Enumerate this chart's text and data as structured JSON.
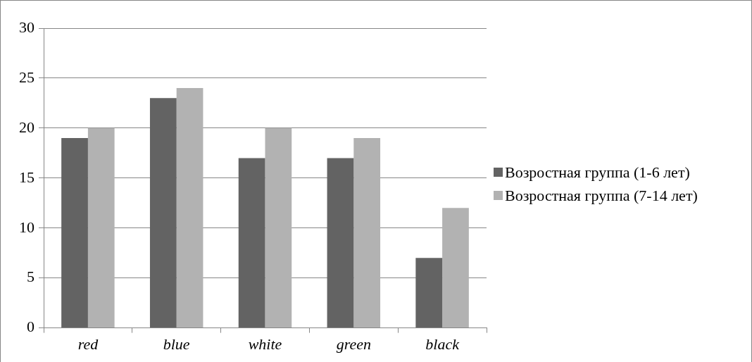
{
  "chart_data": {
    "type": "bar",
    "categories": [
      "red",
      "blue",
      "white",
      "green",
      "black"
    ],
    "series": [
      {
        "name": "Возростная группа (1-6 лет)",
        "color": "#636363",
        "values": [
          19,
          23,
          17,
          17,
          7
        ]
      },
      {
        "name": "Возростная группа (7-14 лет)",
        "color": "#b2b2b2",
        "values": [
          20,
          24,
          20,
          19,
          12
        ]
      }
    ],
    "ylim": [
      0,
      30
    ],
    "yticks": [
      0,
      5,
      10,
      15,
      20,
      25,
      30
    ],
    "grid": "y",
    "legend": "right"
  }
}
